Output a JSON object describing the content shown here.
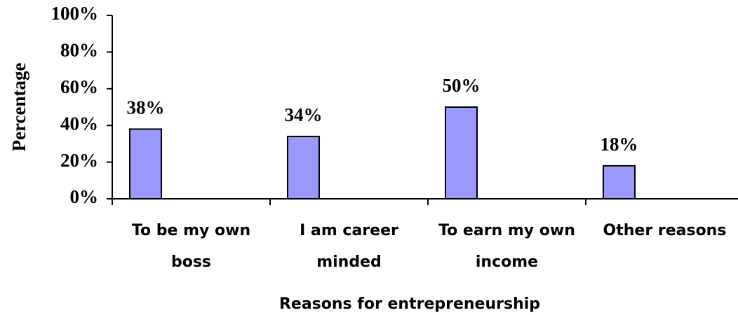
{
  "chart_data": {
    "type": "bar",
    "x_label": "Reasons for entrepreneurship",
    "y_label": "Percentage",
    "categories": [
      "To be my own boss",
      "I am career minded",
      "To earn my own income",
      "Other reasons"
    ],
    "values": [
      38,
      34,
      50,
      18
    ],
    "value_labels": [
      "38%",
      "34%",
      "50%",
      "18%"
    ],
    "color": "#9999ff",
    "ylim": [
      0,
      100
    ],
    "yticks": [
      {
        "value": 0,
        "label": "0%"
      },
      {
        "value": 20,
        "label": "20%"
      },
      {
        "value": 40,
        "label": "40%"
      },
      {
        "value": 60,
        "label": "60%"
      },
      {
        "value": 80,
        "label": "80%"
      },
      {
        "value": 100,
        "label": "100%"
      }
    ]
  }
}
